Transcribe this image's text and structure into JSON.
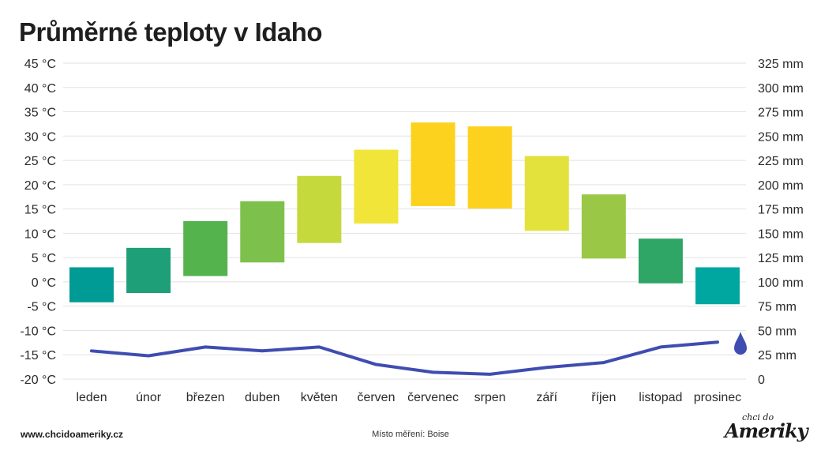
{
  "chart_data": {
    "type": "bar",
    "title": "Průměrné teploty v Idaho",
    "categories": [
      "leden",
      "únor",
      "březen",
      "duben",
      "květen",
      "červen",
      "červenec",
      "srpen",
      "září",
      "říjen",
      "listopad",
      "prosinec"
    ],
    "series": [
      {
        "kind": "temperature-range",
        "min": [
          -4.2,
          -2.3,
          1.2,
          4.0,
          8.0,
          12.0,
          15.6,
          15.1,
          10.5,
          4.8,
          -0.3,
          -4.6
        ],
        "max": [
          3.0,
          7.0,
          12.5,
          16.6,
          21.8,
          27.2,
          32.8,
          32.0,
          25.9,
          18.0,
          8.9,
          3.0
        ],
        "colors": [
          "#009b94",
          "#1f9f78",
          "#55b34e",
          "#7ec04c",
          "#c5d93c",
          "#f1e53a",
          "#fdd21e",
          "#fdd21e",
          "#e3e23d",
          "#9ac846",
          "#2fa566",
          "#00a7a0"
        ]
      },
      {
        "kind": "precipitation",
        "values": [
          29,
          24,
          33,
          29,
          33,
          15,
          7,
          5,
          12,
          17,
          33,
          38
        ],
        "color": "#3f4db1"
      }
    ],
    "y_left": {
      "ticks": [
        "45 °C",
        "40 °C",
        "35 °C",
        "30 °C",
        "25 °C",
        "20 °C",
        "15 °C",
        "10 °C",
        "5 °C",
        "0 °C",
        "-5 °C",
        "-10 °C",
        "-15 °C",
        "-20 °C"
      ],
      "range": [
        -20,
        45
      ]
    },
    "y_right": {
      "ticks": [
        "325 mm",
        "300 mm",
        "275 mm",
        "250 mm",
        "225 mm",
        "200 mm",
        "175 mm",
        "150 mm",
        "125 mm",
        "100 mm",
        "75 mm",
        "50 mm",
        "25 mm",
        "0"
      ],
      "range": [
        0,
        325
      ]
    },
    "grid": true
  },
  "footer": {
    "website": "www.chcidoameriky.cz",
    "location": "Místo měření: Boise",
    "logo_small": "chci do",
    "logo_big": "Ameriky"
  },
  "icons": {
    "precipitation": "water-drop-icon"
  }
}
